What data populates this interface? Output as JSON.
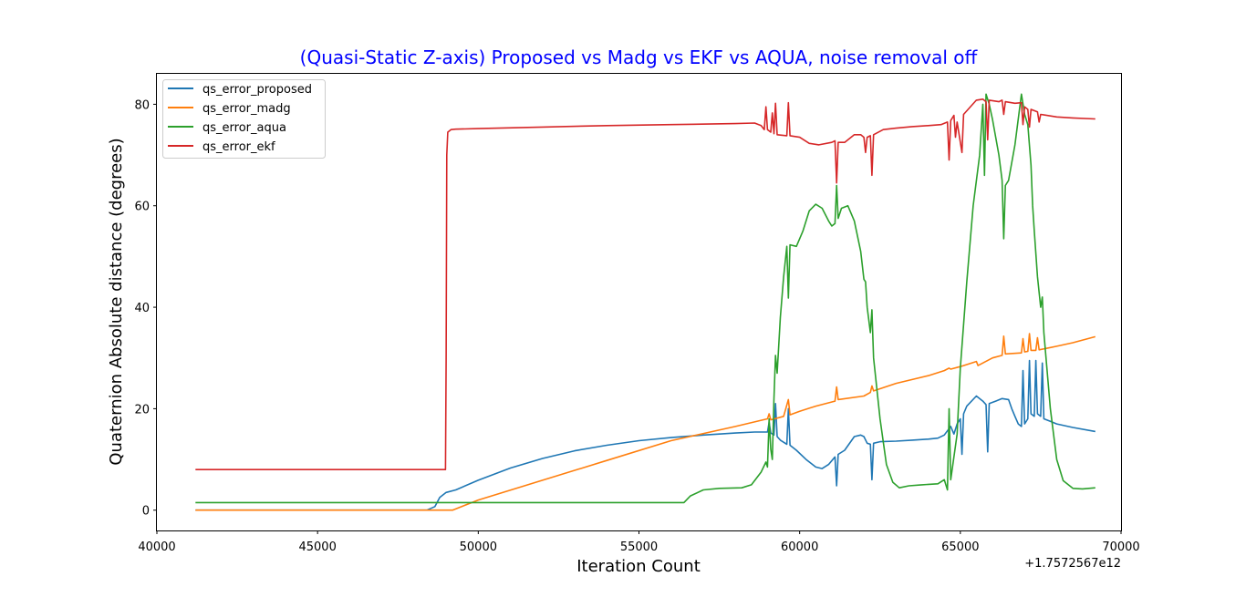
{
  "chart_data": {
    "type": "line",
    "title": "(Quasi-Static Z-axis) Proposed vs Madg vs EKF vs AQUA, noise removal off",
    "title_color": "#0000ff",
    "xlabel": "Iteration Count",
    "ylabel": "Quaternion Absolute distance (degrees)",
    "x_offset_label": "+1.7572567e12",
    "xlim": [
      40000,
      70000
    ],
    "ylim": [
      -4,
      86
    ],
    "x_ticks": [
      40000,
      45000,
      50000,
      55000,
      60000,
      65000,
      70000
    ],
    "y_ticks": [
      0,
      20,
      40,
      60,
      80
    ],
    "legend_position": "top-left",
    "grid": false,
    "series": [
      {
        "name": "qs_error_proposed",
        "color": "#1f77b4",
        "points": [
          [
            41200,
            0
          ],
          [
            48400,
            0
          ],
          [
            48650,
            0.7
          ],
          [
            48800,
            2.5
          ],
          [
            49000,
            3.5
          ],
          [
            49300,
            4
          ],
          [
            50000,
            5.9
          ],
          [
            51000,
            8.3
          ],
          [
            52000,
            10.2
          ],
          [
            53000,
            11.7
          ],
          [
            54000,
            12.8
          ],
          [
            55000,
            13.7
          ],
          [
            56000,
            14.3
          ],
          [
            57000,
            14.8
          ],
          [
            58000,
            15.2
          ],
          [
            58600,
            15.4
          ],
          [
            59000,
            15.4
          ],
          [
            59050,
            17.3
          ],
          [
            59100,
            15.2
          ],
          [
            59200,
            14.8
          ],
          [
            59250,
            21
          ],
          [
            59300,
            14.5
          ],
          [
            59400,
            13.8
          ],
          [
            59600,
            13
          ],
          [
            59650,
            20
          ],
          [
            59700,
            12.8
          ],
          [
            59900,
            11.8
          ],
          [
            60200,
            10
          ],
          [
            60500,
            8.5
          ],
          [
            60700,
            8.2
          ],
          [
            60900,
            9
          ],
          [
            61100,
            10.5
          ],
          [
            61150,
            4.8
          ],
          [
            61200,
            11
          ],
          [
            61400,
            11.8
          ],
          [
            61700,
            14.5
          ],
          [
            61900,
            14.8
          ],
          [
            62000,
            14.5
          ],
          [
            62100,
            13.2
          ],
          [
            62200,
            13
          ],
          [
            62250,
            6
          ],
          [
            62300,
            13.2
          ],
          [
            62500,
            13.5
          ],
          [
            63000,
            13.6
          ],
          [
            63500,
            13.8
          ],
          [
            64000,
            14
          ],
          [
            64300,
            14.2
          ],
          [
            64500,
            14.8
          ],
          [
            64700,
            16.5
          ],
          [
            64800,
            15
          ],
          [
            64900,
            17
          ],
          [
            65000,
            18
          ],
          [
            65050,
            11
          ],
          [
            65100,
            19
          ],
          [
            65200,
            20.5
          ],
          [
            65500,
            22.5
          ],
          [
            65700,
            21.5
          ],
          [
            65800,
            20.8
          ],
          [
            65850,
            11.5
          ],
          [
            65900,
            21
          ],
          [
            66100,
            21.5
          ],
          [
            66300,
            22
          ],
          [
            66500,
            21.8
          ],
          [
            66600,
            20
          ],
          [
            66700,
            18.5
          ],
          [
            66800,
            17
          ],
          [
            66900,
            16.5
          ],
          [
            66950,
            27.5
          ],
          [
            67000,
            17
          ],
          [
            67100,
            18
          ],
          [
            67150,
            29.5
          ],
          [
            67200,
            19
          ],
          [
            67300,
            18.5
          ],
          [
            67350,
            29.5
          ],
          [
            67400,
            19
          ],
          [
            67500,
            18.5
          ],
          [
            67550,
            29
          ],
          [
            67600,
            18
          ],
          [
            67800,
            17.5
          ],
          [
            68000,
            17
          ],
          [
            68500,
            16.3
          ],
          [
            69200,
            15.5
          ]
        ]
      },
      {
        "name": "qs_error_madg",
        "color": "#ff7f0e",
        "points": [
          [
            41200,
            0
          ],
          [
            48300,
            0
          ],
          [
            49200,
            0
          ],
          [
            50000,
            2
          ],
          [
            52000,
            5.9
          ],
          [
            54000,
            9.8
          ],
          [
            56000,
            13.7
          ],
          [
            58000,
            16.5
          ],
          [
            59000,
            18
          ],
          [
            59050,
            19
          ],
          [
            59100,
            17.8
          ],
          [
            59500,
            18.5
          ],
          [
            59650,
            21.8
          ],
          [
            59700,
            18.8
          ],
          [
            60000,
            19.5
          ],
          [
            60500,
            20.5
          ],
          [
            61100,
            21.5
          ],
          [
            61150,
            24.3
          ],
          [
            61200,
            21.8
          ],
          [
            62000,
            22.5
          ],
          [
            62200,
            23.2
          ],
          [
            62250,
            24.5
          ],
          [
            62300,
            23.5
          ],
          [
            63000,
            25
          ],
          [
            64000,
            26.5
          ],
          [
            64500,
            27.5
          ],
          [
            64650,
            28
          ],
          [
            64700,
            27.8
          ],
          [
            65000,
            28.3
          ],
          [
            65500,
            29.3
          ],
          [
            65550,
            28.5
          ],
          [
            66000,
            30
          ],
          [
            66300,
            30.5
          ],
          [
            66350,
            34.3
          ],
          [
            66400,
            30.8
          ],
          [
            66900,
            31
          ],
          [
            66950,
            33.8
          ],
          [
            67000,
            31.2
          ],
          [
            67100,
            31.3
          ],
          [
            67150,
            34.8
          ],
          [
            67200,
            31.5
          ],
          [
            67350,
            31.5
          ],
          [
            67400,
            34
          ],
          [
            67450,
            31.6
          ],
          [
            68000,
            32.3
          ],
          [
            68500,
            33
          ],
          [
            69200,
            34.2
          ]
        ]
      },
      {
        "name": "qs_error_aqua",
        "color": "#2ca02c",
        "points": [
          [
            41200,
            1.5
          ],
          [
            56400,
            1.5
          ],
          [
            56600,
            2.8
          ],
          [
            57000,
            4
          ],
          [
            57500,
            4.3
          ],
          [
            58200,
            4.4
          ],
          [
            58500,
            5
          ],
          [
            58800,
            7.5
          ],
          [
            58950,
            9.5
          ],
          [
            59000,
            8.5
          ],
          [
            59050,
            18
          ],
          [
            59100,
            12
          ],
          [
            59150,
            10
          ],
          [
            59200,
            22
          ],
          [
            59250,
            30.5
          ],
          [
            59300,
            27
          ],
          [
            59400,
            38
          ],
          [
            59500,
            46
          ],
          [
            59600,
            52
          ],
          [
            59650,
            41.8
          ],
          [
            59700,
            52.3
          ],
          [
            59900,
            52
          ],
          [
            60100,
            55
          ],
          [
            60300,
            59
          ],
          [
            60500,
            60.3
          ],
          [
            60700,
            59.5
          ],
          [
            60900,
            57
          ],
          [
            61000,
            56
          ],
          [
            61100,
            56.5
          ],
          [
            61150,
            64
          ],
          [
            61200,
            57.5
          ],
          [
            61300,
            59.5
          ],
          [
            61500,
            60
          ],
          [
            61700,
            57
          ],
          [
            61900,
            51
          ],
          [
            62000,
            45.5
          ],
          [
            62050,
            45
          ],
          [
            62100,
            40
          ],
          [
            62200,
            35
          ],
          [
            62250,
            39.5
          ],
          [
            62300,
            30
          ],
          [
            62500,
            18
          ],
          [
            62700,
            9
          ],
          [
            62900,
            5.5
          ],
          [
            63100,
            4.4
          ],
          [
            63400,
            4.8
          ],
          [
            63800,
            5
          ],
          [
            64300,
            5.2
          ],
          [
            64500,
            6
          ],
          [
            64600,
            4
          ],
          [
            64650,
            20
          ],
          [
            64700,
            6
          ],
          [
            64900,
            15
          ],
          [
            65000,
            28
          ],
          [
            65200,
            45
          ],
          [
            65400,
            60
          ],
          [
            65600,
            70
          ],
          [
            65700,
            80
          ],
          [
            65750,
            66
          ],
          [
            65800,
            82
          ],
          [
            65900,
            80
          ],
          [
            66000,
            77
          ],
          [
            66200,
            70
          ],
          [
            66300,
            65
          ],
          [
            66350,
            53.5
          ],
          [
            66400,
            64
          ],
          [
            66500,
            65
          ],
          [
            66700,
            72
          ],
          [
            66900,
            82
          ],
          [
            67000,
            78
          ],
          [
            67100,
            76
          ],
          [
            67200,
            68
          ],
          [
            67250,
            60
          ],
          [
            67300,
            55
          ],
          [
            67400,
            46
          ],
          [
            67500,
            40
          ],
          [
            67550,
            42
          ],
          [
            67600,
            35
          ],
          [
            67800,
            20
          ],
          [
            68000,
            10
          ],
          [
            68200,
            5.8
          ],
          [
            68500,
            4.3
          ],
          [
            68800,
            4.2
          ],
          [
            69200,
            4.4
          ]
        ]
      },
      {
        "name": "qs_error_ekf",
        "color": "#d62728",
        "points": [
          [
            41200,
            8
          ],
          [
            48980,
            8
          ],
          [
            49000,
            30
          ],
          [
            49020,
            70
          ],
          [
            49050,
            74.5
          ],
          [
            49150,
            75
          ],
          [
            49300,
            75.1
          ],
          [
            50000,
            75.2
          ],
          [
            52000,
            75.5
          ],
          [
            54000,
            75.8
          ],
          [
            56000,
            76
          ],
          [
            58000,
            76.2
          ],
          [
            58600,
            76.3
          ],
          [
            58800,
            75.8
          ],
          [
            58900,
            75
          ],
          [
            58950,
            79.5
          ],
          [
            59000,
            75
          ],
          [
            59100,
            74.5
          ],
          [
            59150,
            78.3
          ],
          [
            59200,
            74.2
          ],
          [
            59250,
            80.2
          ],
          [
            59300,
            74
          ],
          [
            59600,
            73.8
          ],
          [
            59650,
            80.3
          ],
          [
            59700,
            73.8
          ],
          [
            60000,
            73.5
          ],
          [
            60300,
            72.3
          ],
          [
            60600,
            72
          ],
          [
            61000,
            72.5
          ],
          [
            61100,
            72.8
          ],
          [
            61150,
            64.5
          ],
          [
            61200,
            72.5
          ],
          [
            61400,
            72.5
          ],
          [
            61700,
            74
          ],
          [
            61900,
            74
          ],
          [
            62000,
            73.5
          ],
          [
            62050,
            70.5
          ],
          [
            62100,
            73.5
          ],
          [
            62200,
            73.8
          ],
          [
            62250,
            66
          ],
          [
            62300,
            74
          ],
          [
            62600,
            75
          ],
          [
            63000,
            75.3
          ],
          [
            63500,
            75.6
          ],
          [
            64000,
            75.8
          ],
          [
            64400,
            76
          ],
          [
            64600,
            76.5
          ],
          [
            64650,
            69
          ],
          [
            64700,
            76.8
          ],
          [
            64800,
            77.8
          ],
          [
            64850,
            73.5
          ],
          [
            64900,
            76.5
          ],
          [
            65050,
            70.5
          ],
          [
            65100,
            78
          ],
          [
            65500,
            80.8
          ],
          [
            65700,
            81
          ],
          [
            65800,
            80.5
          ],
          [
            65850,
            73
          ],
          [
            65900,
            80.8
          ],
          [
            66200,
            80.5
          ],
          [
            66300,
            80.8
          ],
          [
            66350,
            78
          ],
          [
            66400,
            80.5
          ],
          [
            66700,
            80.2
          ],
          [
            66900,
            80.3
          ],
          [
            66950,
            76
          ],
          [
            67000,
            79.5
          ],
          [
            67100,
            79
          ],
          [
            67150,
            75.5
          ],
          [
            67200,
            79
          ],
          [
            67400,
            78.5
          ],
          [
            67450,
            76.5
          ],
          [
            67500,
            78
          ],
          [
            68000,
            77.5
          ],
          [
            68500,
            77.3
          ],
          [
            69200,
            77.1
          ]
        ]
      }
    ]
  }
}
